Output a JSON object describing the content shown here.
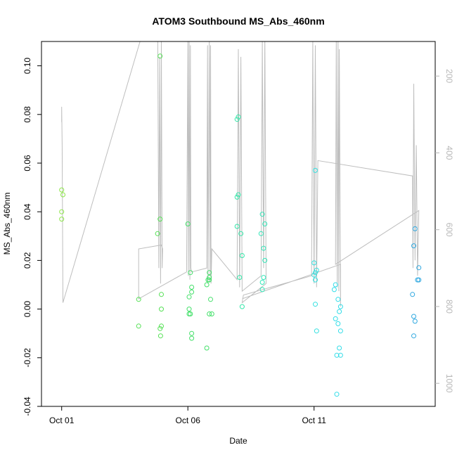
{
  "chart_data": {
    "type": "scatter",
    "title": "ATOM3 Southbound MS_Abs_460nm",
    "xlabel": "Date",
    "ylabel": "MS_Abs_460nm",
    "x_ticks": [
      "Oct 01",
      "Oct 06",
      "Oct 11"
    ],
    "x_tick_days": [
      0,
      5,
      10
    ],
    "xlim_days": [
      -0.8,
      14.8
    ],
    "ylim": [
      -0.04,
      0.11
    ],
    "y_ticks": [
      -0.04,
      -0.02,
      0.0,
      0.02,
      0.04,
      0.06,
      0.08,
      0.1
    ],
    "y_tick_labels": [
      "-0.04",
      "-0.02",
      "0.00",
      "0.02",
      "0.04",
      "0.06",
      "0.08",
      "0.10"
    ],
    "right_axis": {
      "color": "#b8b8b8",
      "ticks": [
        200,
        400,
        600,
        800,
        1000
      ],
      "ylim": [
        1060,
        110
      ],
      "reversed": true
    },
    "grid": false,
    "legend": "none",
    "points": [
      {
        "x": 0.0,
        "y": 0.049,
        "color": "#8de64a"
      },
      {
        "x": 0.05,
        "y": 0.047,
        "color": "#8de64a"
      },
      {
        "x": 0.0,
        "y": 0.04,
        "color": "#8de64a"
      },
      {
        "x": 0.0,
        "y": 0.037,
        "color": "#8de64a"
      },
      {
        "x": 3.05,
        "y": 0.004,
        "color": "#55e055"
      },
      {
        "x": 3.05,
        "y": -0.007,
        "color": "#55e055"
      },
      {
        "x": 3.8,
        "y": 0.031,
        "color": "#55e055"
      },
      {
        "x": 3.9,
        "y": 0.104,
        "color": "#55e055"
      },
      {
        "x": 3.9,
        "y": 0.037,
        "color": "#55e055"
      },
      {
        "x": 3.95,
        "y": 0.006,
        "color": "#55e055"
      },
      {
        "x": 3.95,
        "y": 0.0,
        "color": "#55e055"
      },
      {
        "x": 3.95,
        "y": -0.007,
        "color": "#55e055"
      },
      {
        "x": 3.9,
        "y": -0.008,
        "color": "#55e055"
      },
      {
        "x": 3.92,
        "y": -0.011,
        "color": "#55e055"
      },
      {
        "x": 5.0,
        "y": 0.035,
        "color": "#44e06a"
      },
      {
        "x": 5.1,
        "y": 0.015,
        "color": "#44e06a"
      },
      {
        "x": 5.05,
        "y": 0.005,
        "color": "#44e06a"
      },
      {
        "x": 5.15,
        "y": 0.009,
        "color": "#44e06a"
      },
      {
        "x": 5.15,
        "y": 0.007,
        "color": "#44e06a"
      },
      {
        "x": 5.05,
        "y": 0.0,
        "color": "#44e06a"
      },
      {
        "x": 5.05,
        "y": -0.002,
        "color": "#44e06a"
      },
      {
        "x": 5.1,
        "y": -0.002,
        "color": "#44e06a"
      },
      {
        "x": 5.15,
        "y": -0.01,
        "color": "#44e06a"
      },
      {
        "x": 5.15,
        "y": -0.012,
        "color": "#44e06a"
      },
      {
        "x": 5.85,
        "y": 0.015,
        "color": "#44e06a"
      },
      {
        "x": 5.85,
        "y": 0.013,
        "color": "#44e06a"
      },
      {
        "x": 5.85,
        "y": 0.012,
        "color": "#44e06a"
      },
      {
        "x": 5.8,
        "y": 0.012,
        "color": "#44e06a"
      },
      {
        "x": 5.75,
        "y": 0.01,
        "color": "#44e06a"
      },
      {
        "x": 5.9,
        "y": 0.004,
        "color": "#44e06a"
      },
      {
        "x": 5.85,
        "y": -0.002,
        "color": "#44e06a"
      },
      {
        "x": 5.95,
        "y": -0.002,
        "color": "#44e06a"
      },
      {
        "x": 5.75,
        "y": -0.016,
        "color": "#44e06a"
      },
      {
        "x": 7.0,
        "y": 0.079,
        "color": "#33e6a8"
      },
      {
        "x": 6.95,
        "y": 0.078,
        "color": "#33e6a8"
      },
      {
        "x": 7.0,
        "y": 0.047,
        "color": "#33e6a8"
      },
      {
        "x": 6.95,
        "y": 0.046,
        "color": "#33e6a8"
      },
      {
        "x": 6.95,
        "y": 0.034,
        "color": "#33e6a8"
      },
      {
        "x": 7.1,
        "y": 0.031,
        "color": "#33e6a8"
      },
      {
        "x": 7.15,
        "y": 0.022,
        "color": "#33e6a8"
      },
      {
        "x": 7.05,
        "y": 0.013,
        "color": "#33e6a8"
      },
      {
        "x": 7.15,
        "y": 0.001,
        "color": "#33e6a8"
      },
      {
        "x": 7.95,
        "y": 0.039,
        "color": "#33e6b8"
      },
      {
        "x": 8.05,
        "y": 0.035,
        "color": "#33e6b8"
      },
      {
        "x": 7.9,
        "y": 0.031,
        "color": "#33e6b8"
      },
      {
        "x": 8.0,
        "y": 0.025,
        "color": "#33e6b8"
      },
      {
        "x": 8.05,
        "y": 0.02,
        "color": "#33e6b8"
      },
      {
        "x": 8.0,
        "y": 0.013,
        "color": "#33e6b8"
      },
      {
        "x": 7.95,
        "y": 0.011,
        "color": "#33e6b8"
      },
      {
        "x": 7.95,
        "y": 0.008,
        "color": "#33e6b8"
      },
      {
        "x": 10.05,
        "y": 0.057,
        "color": "#33e0e0"
      },
      {
        "x": 10.0,
        "y": 0.019,
        "color": "#33e0e0"
      },
      {
        "x": 10.1,
        "y": 0.016,
        "color": "#33e0e0"
      },
      {
        "x": 10.05,
        "y": 0.015,
        "color": "#33e0e0"
      },
      {
        "x": 10.0,
        "y": 0.014,
        "color": "#33e0e0"
      },
      {
        "x": 10.05,
        "y": 0.012,
        "color": "#33e0e0"
      },
      {
        "x": 10.05,
        "y": 0.002,
        "color": "#33e0e0"
      },
      {
        "x": 10.1,
        "y": -0.009,
        "color": "#33e0e0"
      },
      {
        "x": 10.85,
        "y": 0.01,
        "color": "#33dde8"
      },
      {
        "x": 10.8,
        "y": 0.008,
        "color": "#33dde8"
      },
      {
        "x": 10.95,
        "y": 0.004,
        "color": "#33dde8"
      },
      {
        "x": 11.05,
        "y": 0.001,
        "color": "#33dde8"
      },
      {
        "x": 11.0,
        "y": -0.001,
        "color": "#33dde8"
      },
      {
        "x": 10.85,
        "y": -0.004,
        "color": "#33dde8"
      },
      {
        "x": 10.95,
        "y": -0.006,
        "color": "#33dde8"
      },
      {
        "x": 11.05,
        "y": -0.009,
        "color": "#33dde8"
      },
      {
        "x": 11.0,
        "y": -0.016,
        "color": "#33dde8"
      },
      {
        "x": 10.9,
        "y": -0.019,
        "color": "#33dde8"
      },
      {
        "x": 11.05,
        "y": -0.019,
        "color": "#33dde8"
      },
      {
        "x": 10.9,
        "y": -0.035,
        "color": "#33dde8"
      },
      {
        "x": 14.0,
        "y": 0.033,
        "color": "#2fa8e0"
      },
      {
        "x": 13.95,
        "y": 0.026,
        "color": "#2fa8e0"
      },
      {
        "x": 14.15,
        "y": 0.017,
        "color": "#2fa8e0"
      },
      {
        "x": 14.1,
        "y": 0.012,
        "color": "#2fa8e0"
      },
      {
        "x": 14.15,
        "y": 0.012,
        "color": "#2fa8e0"
      },
      {
        "x": 13.9,
        "y": 0.006,
        "color": "#2fa8e0"
      },
      {
        "x": 13.95,
        "y": -0.003,
        "color": "#2fa8e0"
      },
      {
        "x": 14.0,
        "y": -0.005,
        "color": "#2fa8e0"
      },
      {
        "x": 13.95,
        "y": -0.011,
        "color": "#2fa8e0"
      }
    ],
    "depth_trace": [
      [
        0.0,
        320
      ],
      [
        0.0,
        280
      ],
      [
        0.02,
        380
      ],
      [
        0.05,
        790
      ],
      [
        3.6,
        0
      ],
      [
        3.8,
        0
      ],
      [
        3.85,
        700
      ],
      [
        3.88,
        150
      ],
      [
        3.92,
        740
      ],
      [
        3.95,
        100
      ],
      [
        3.98,
        700
      ],
      [
        4.0,
        650
      ],
      [
        3.95,
        640
      ],
      [
        3.05,
        650
      ],
      [
        3.05,
        780
      ],
      [
        4.95,
        710
      ],
      [
        5.0,
        110
      ],
      [
        5.02,
        720
      ],
      [
        5.05,
        100
      ],
      [
        5.08,
        730
      ],
      [
        5.1,
        120
      ],
      [
        5.12,
        700
      ],
      [
        5.15,
        710
      ],
      [
        5.75,
        700
      ],
      [
        5.78,
        120
      ],
      [
        5.8,
        740
      ],
      [
        5.85,
        100
      ],
      [
        5.88,
        720
      ],
      [
        5.9,
        120
      ],
      [
        5.92,
        740
      ],
      [
        5.95,
        650
      ],
      [
        6.95,
        730
      ],
      [
        7.0,
        130
      ],
      [
        7.05,
        750
      ],
      [
        7.1,
        150
      ],
      [
        7.15,
        760
      ],
      [
        7.9,
        720
      ],
      [
        7.95,
        110
      ],
      [
        8.0,
        700
      ],
      [
        8.05,
        100
      ],
      [
        8.1,
        740
      ],
      [
        7.15,
        790
      ],
      [
        7.2,
        770
      ],
      [
        9.9,
        720
      ],
      [
        9.95,
        110
      ],
      [
        10.0,
        740
      ],
      [
        10.05,
        120
      ],
      [
        10.1,
        750
      ],
      [
        10.15,
        420
      ],
      [
        13.9,
        460
      ],
      [
        13.92,
        700
      ],
      [
        13.95,
        220
      ],
      [
        14.0,
        680
      ],
      [
        14.05,
        380
      ],
      [
        14.1,
        720
      ],
      [
        14.15,
        550
      ],
      [
        10.85,
        690
      ],
      [
        10.88,
        100
      ],
      [
        10.92,
        750
      ],
      [
        10.95,
        110
      ],
      [
        10.98,
        760
      ],
      [
        11.0,
        130
      ],
      [
        11.05,
        800
      ],
      [
        11.05,
        690
      ],
      [
        7.15,
        780
      ]
    ]
  }
}
